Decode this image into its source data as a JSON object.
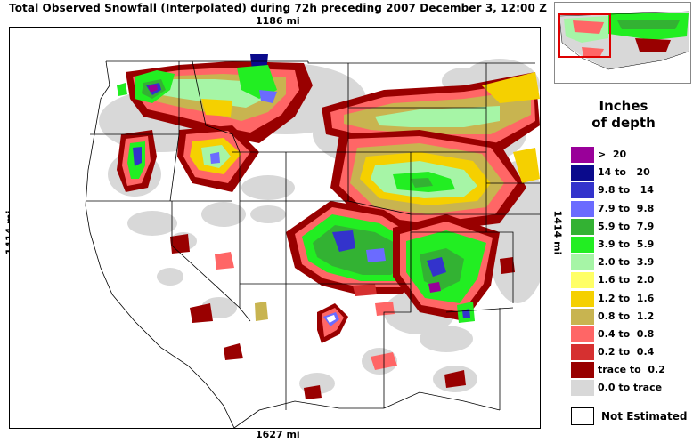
{
  "title": "Total Observed Snowfall (Interpolated) during 72h preceding 2007 December 3, 12:00 Z",
  "scale": {
    "top": "1186 mi",
    "bottom": "1627 mi",
    "left": "1414 mi",
    "right": "1414 mi"
  },
  "legend": {
    "title_line1": "Inches",
    "title_line2": "of depth",
    "items": [
      {
        "label": ">  20",
        "color": "#990099"
      },
      {
        "label": "14 to   20",
        "color": "#0a0a8c"
      },
      {
        "label": "9.8 to   14",
        "color": "#3333cc"
      },
      {
        "label": "7.9 to  9.8",
        "color": "#6b6bff"
      },
      {
        "label": "5.9 to  7.9",
        "color": "#33b233"
      },
      {
        "label": "3.9 to  5.9",
        "color": "#22ee22"
      },
      {
        "label": "2.0 to  3.9",
        "color": "#a6f5a6"
      },
      {
        "label": "1.6 to  2.0",
        "color": "#ffff66"
      },
      {
        "label": "1.2 to  1.6",
        "color": "#f5d000"
      },
      {
        "label": "0.8 to  1.2",
        "color": "#c8b450"
      },
      {
        "label": "0.4 to  0.8",
        "color": "#ff6666"
      },
      {
        "label": "0.2 to  0.4",
        "color": "#d63030"
      },
      {
        "label": "trace to  0.2",
        "color": "#990000"
      },
      {
        "label": "0.0 to trace",
        "color": "#d8d8d8"
      }
    ],
    "not_estimated": "Not Estimated"
  }
}
